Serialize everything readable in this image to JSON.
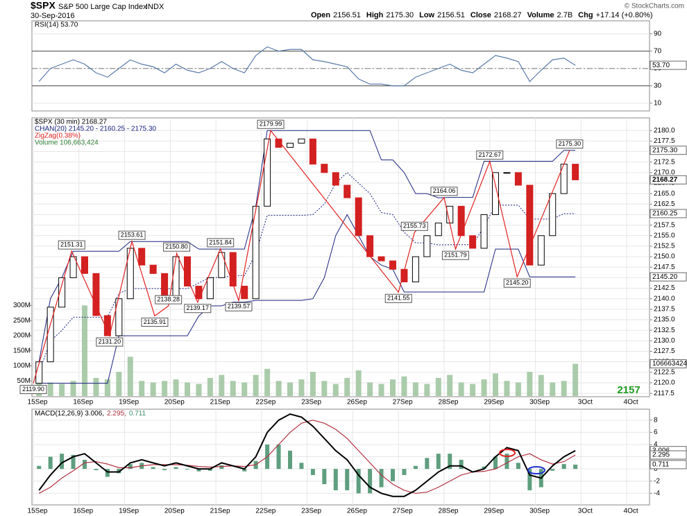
{
  "header": {
    "symbol": "$SPX",
    "name": "S&P 500 Large Cap Index",
    "exchange": "INDX",
    "date": "30-Sep-2016",
    "stats": [
      {
        "label": "Open",
        "value": "2156.51"
      },
      {
        "label": "High",
        "value": "2175.30"
      },
      {
        "label": "Low",
        "value": "2156.51"
      },
      {
        "label": "Close",
        "value": "2168.27"
      },
      {
        "label": "Volume",
        "value": "2.7B"
      },
      {
        "label": "Chg",
        "value": "+17.14 (+0.80%)"
      }
    ],
    "credit": "© StockCharts.com"
  },
  "chart_data": [
    {
      "type": "line",
      "legend": "RSI(14) 53.70",
      "color": "#5a7aa8",
      "x": [
        0.125,
        0.375,
        0.625,
        0.875,
        1.125,
        1.375,
        1.625,
        1.875,
        2.125,
        2.375,
        2.625,
        2.875,
        3.125,
        3.375,
        3.625,
        3.875,
        4.125,
        4.375,
        4.625,
        4.875,
        5.125,
        5.375,
        5.625,
        5.875,
        6.125,
        6.375,
        6.625,
        6.875,
        7.125,
        7.375,
        7.625,
        7.875,
        8.125,
        8.375,
        8.625,
        8.875,
        9.125,
        9.375,
        9.625,
        9.875,
        10.125,
        10.375,
        10.625,
        10.875,
        11.125,
        11.375,
        11.625,
        11.875
      ],
      "values": [
        35,
        50,
        55,
        60,
        55,
        45,
        40,
        50,
        60,
        55,
        52,
        45,
        55,
        48,
        45,
        50,
        58,
        50,
        45,
        65,
        75,
        70,
        72,
        72,
        60,
        58,
        55,
        52,
        38,
        32,
        32,
        30,
        30,
        40,
        45,
        50,
        55,
        48,
        45,
        55,
        65,
        62,
        58,
        35,
        48,
        60,
        62,
        53.7
      ],
      "xlim": [
        0,
        13.5
      ],
      "ylim": [
        1,
        105
      ],
      "yticks": [
        10,
        30,
        50,
        70,
        90
      ],
      "reference_lines": [
        30,
        50,
        70
      ],
      "last_label": {
        "value": 53.7,
        "label": "53.70"
      }
    },
    {
      "type": "candlestick",
      "legend": [
        {
          "text": "$SPX (30 min) 2168.27",
          "color": "#000000"
        },
        {
          "text": "CHAN(20) 2145.20 - 2160.25 - 2175.30",
          "color": "#1a237e"
        },
        {
          "text": "ZigZag(0.38%)",
          "color": "#e02020"
        },
        {
          "text": "Volume 106,663,424",
          "color": "#2e7d32"
        }
      ],
      "x": [
        0.125,
        0.375,
        0.625,
        0.875,
        1.125,
        1.375,
        1.625,
        1.875,
        2.125,
        2.375,
        2.625,
        2.875,
        3.125,
        3.375,
        3.625,
        3.875,
        4.125,
        4.375,
        4.625,
        4.875,
        5.125,
        5.375,
        5.625,
        5.875,
        6.125,
        6.375,
        6.625,
        6.875,
        7.125,
        7.375,
        7.625,
        7.875,
        8.125,
        8.375,
        8.625,
        8.875,
        9.125,
        9.375,
        9.625,
        9.875,
        10.125,
        10.375,
        10.625,
        10.875,
        11.125,
        11.375,
        11.625,
        11.875
      ],
      "open": [
        2119.9,
        2125,
        2138,
        2145,
        2150,
        2146,
        2136,
        2131.2,
        2140,
        2152,
        2148,
        2146,
        2140,
        2150,
        2143,
        2140,
        2145,
        2151,
        2143,
        2140,
        2162,
        2178,
        2176,
        2177,
        2178,
        2172,
        2170,
        2167,
        2164,
        2155,
        2150,
        2149,
        2147,
        2144,
        2150,
        2155,
        2158,
        2162,
        2155,
        2152,
        2160,
        2170,
        2170,
        2167,
        2148,
        2155,
        2165,
        2172
      ],
      "close": [
        2125,
        2138,
        2145,
        2150,
        2146,
        2136,
        2131.2,
        2140,
        2152,
        2148,
        2146,
        2140,
        2150,
        2143,
        2140,
        2145,
        2151,
        2143,
        2140,
        2162,
        2178,
        2176,
        2177,
        2178,
        2172,
        2170,
        2167,
        2164,
        2155,
        2150,
        2149,
        2147,
        2144,
        2150,
        2155,
        2158,
        2162,
        2155,
        2152,
        2160,
        2170,
        2170,
        2167,
        2148,
        2155,
        2165,
        2172,
        2168.27
      ],
      "up_color": "#000000",
      "down_color": "#d32020",
      "channel": {
        "color": "#1a237e",
        "upper": [
          2125,
          2140,
          2145,
          2151.3,
          2151.3,
          2151.3,
          2151.3,
          2151.3,
          2153.6,
          2153.6,
          2153.6,
          2153.6,
          2153.6,
          2153.6,
          2151.8,
          2151.8,
          2151.8,
          2151.8,
          2151.8,
          2162,
          2180,
          2180,
          2180,
          2180,
          2180,
          2180,
          2180,
          2180,
          2180,
          2180,
          2173,
          2173,
          2170,
          2165,
          2165,
          2164,
          2164.1,
          2164.1,
          2164.1,
          2172.7,
          2172.7,
          2172.7,
          2172.7,
          2172.7,
          2172.7,
          2172.7,
          2175.3,
          2175.3
        ],
        "middle": [
          2122.45,
          2129.95,
          2132.45,
          2135.6,
          2135.6,
          2135.6,
          2135.6,
          2141.25,
          2142.4,
          2142.4,
          2142.4,
          2142.4,
          2142.4,
          2142.4,
          2143.75,
          2145.05,
          2145.05,
          2145.5,
          2145.5,
          2150.8,
          2159.8,
          2159.8,
          2159.8,
          2159.8,
          2160,
          2162.5,
          2167.5,
          2170,
          2167.5,
          2165,
          2160.5,
          2160,
          2155.8,
          2153.3,
          2153.3,
          2152.8,
          2152.85,
          2152.85,
          2152.85,
          2157.15,
          2162.25,
          2162.25,
          2162.25,
          2158.95,
          2158.95,
          2158.95,
          2160.25,
          2160.25
        ],
        "lower": [
          2119.9,
          2119.9,
          2119.9,
          2119.9,
          2119.9,
          2119.9,
          2119.9,
          2131.2,
          2131.2,
          2131.2,
          2131.2,
          2131.2,
          2131.2,
          2131.2,
          2135.9,
          2138.3,
          2138.3,
          2139.2,
          2139.2,
          2139.6,
          2139.6,
          2139.6,
          2139.6,
          2139.6,
          2140,
          2145,
          2155,
          2160,
          2155,
          2150,
          2148,
          2147,
          2141.6,
          2141.6,
          2141.6,
          2141.6,
          2141.6,
          2141.6,
          2141.6,
          2141.6,
          2151.8,
          2151.8,
          2151.8,
          2145.2,
          2145.2,
          2145.2,
          2145.2,
          2145.2
        ]
      },
      "zigzag": {
        "color": "#e02020",
        "x": [
          0,
          0.84,
          1.67,
          2.16,
          2.66,
          2.96,
          3.14,
          3.6,
          4.1,
          4.5,
          5.2,
          8.0,
          8.35,
          9.0,
          9.25,
          10.0,
          10.6,
          11.75
        ],
        "values": [
          2119.9,
          2151.31,
          2131.2,
          2153.61,
          2135.91,
          2138.28,
          2150.8,
          2139.17,
          2151.84,
          2139.57,
          2179.99,
          2141.55,
          2155.73,
          2164.06,
          2151.79,
          2172.67,
          2145.2,
          2175.3
        ],
        "value_labels": [
          "2119.90",
          "2151.31",
          "2131.20",
          "2153.61",
          "2135.91",
          "2138.28",
          "2150.80",
          "2139.17",
          "2151.84",
          "2139.57",
          "2179.99",
          "2141.55",
          "2155.73",
          "2164.06",
          "2151.79",
          "2172.67",
          "2145.20",
          "2175.30"
        ]
      },
      "volume": {
        "color": "#9cc39c",
        "values": [
          60000000,
          45000000,
          40000000,
          50000000,
          300000000,
          60000000,
          55000000,
          80000000,
          130000000,
          50000000,
          45000000,
          50000000,
          55000000,
          45000000,
          40000000,
          60000000,
          70000000,
          50000000,
          45000000,
          70000000,
          90000000,
          50000000,
          45000000,
          55000000,
          80000000,
          50000000,
          40000000,
          60000000,
          85000000,
          45000000,
          40000000,
          55000000,
          65000000,
          45000000,
          40000000,
          60000000,
          70000000,
          45000000,
          40000000,
          55000000,
          75000000,
          50000000,
          45000000,
          80000000,
          70000000,
          45000000,
          50000000,
          106663424
        ],
        "ylim": [
          0,
          900000000
        ],
        "yticks": [
          {
            "value": 50000000,
            "label": "50M"
          },
          {
            "value": 100000000,
            "label": "100M"
          },
          {
            "value": 150000000,
            "label": "150M"
          },
          {
            "value": 200000000,
            "label": "200M"
          },
          {
            "value": 250000000,
            "label": "250M"
          },
          {
            "value": 300000000,
            "label": "300M"
          }
        ],
        "last_label": {
          "value": 106663424,
          "label": "106663424"
        }
      },
      "xlim": [
        0,
        13.5
      ],
      "ylim": [
        2116.7,
        2183
      ],
      "yticks": [
        2117.5,
        {
          "value": 2120,
          "label": "2120.0"
        },
        2122.5,
        {
          "value": 2125,
          "label": "2125.0"
        },
        2127.5,
        {
          "value": 2130,
          "label": "2130.0"
        },
        2132.5,
        {
          "value": 2135,
          "label": "2135.0"
        },
        2137.5,
        {
          "value": 2140,
          "label": "2140.0"
        },
        2142.5,
        {
          "value": 2145,
          "label": "2145.0"
        },
        2147.5,
        {
          "value": 2150,
          "label": "2150.0"
        },
        2152.5,
        {
          "value": 2155,
          "label": "2155.0"
        },
        2157.5,
        {
          "value": 2160,
          "label": "2160.0"
        },
        2162.5,
        {
          "value": 2165,
          "label": "2165.0"
        },
        2167.5,
        {
          "value": 2170,
          "label": "2170.0"
        },
        2172.5,
        {
          "value": 2175,
          "label": "2175.0"
        },
        2177.5,
        {
          "value": 2180,
          "label": "2180.0"
        }
      ],
      "xticks": [
        {
          "value": 0,
          "label": "15Sep"
        },
        {
          "value": 1,
          "label": "16Sep"
        },
        {
          "value": 2,
          "label": "19Sep"
        },
        {
          "value": 3,
          "label": "20Sep"
        },
        {
          "value": 4,
          "label": "21Sep"
        },
        {
          "value": 5,
          "label": "22Sep"
        },
        {
          "value": 6,
          "label": "23Sep"
        },
        {
          "value": 7,
          "label": "26Sep"
        },
        {
          "value": 8,
          "label": "27Sep"
        },
        {
          "value": 9,
          "label": "28Sep"
        },
        {
          "value": 10,
          "label": "29Sep"
        },
        {
          "value": 11,
          "label": "30Sep"
        },
        {
          "value": 12,
          "label": "3Oct"
        },
        {
          "value": 13,
          "label": "4Oct"
        }
      ],
      "last_labels": [
        {
          "value": 2175.3,
          "label": "2175.30"
        },
        {
          "value": 2168.27,
          "label": "2168.27",
          "bold": true
        },
        {
          "value": 2160.25,
          "label": "2160.25"
        },
        {
          "value": 2145.2,
          "label": "2145.20"
        }
      ],
      "watermark": "2157",
      "watermark_color": "#1f9a1f"
    },
    {
      "type": "macd",
      "legend": [
        {
          "text": "MACD(12,26,9) 3.006,",
          "color": "#000000"
        },
        {
          "text": "2.295,",
          "color": "#b03040"
        },
        {
          "text": "0.711",
          "color": "#3f8f6f"
        }
      ],
      "x": [
        0.125,
        0.375,
        0.625,
        0.875,
        1.125,
        1.375,
        1.625,
        1.875,
        2.125,
        2.375,
        2.625,
        2.875,
        3.125,
        3.375,
        3.625,
        3.875,
        4.125,
        4.375,
        4.625,
        4.875,
        5.125,
        5.375,
        5.625,
        5.875,
        6.125,
        6.375,
        6.625,
        6.875,
        7.125,
        7.375,
        7.625,
        7.875,
        8.125,
        8.375,
        8.625,
        8.875,
        9.125,
        9.375,
        9.625,
        9.875,
        10.125,
        10.375,
        10.625,
        10.875,
        11.125,
        11.375,
        11.625,
        11.875
      ],
      "macd": [
        -3.5,
        -1,
        1,
        2,
        2.5,
        1,
        -0.5,
        -0.5,
        1,
        1.5,
        1,
        0.5,
        1,
        0.5,
        0,
        0,
        1,
        0.5,
        0,
        2,
        6,
        8,
        9,
        8.5,
        7,
        5,
        3,
        1.5,
        -1,
        -3,
        -4,
        -4.5,
        -4.5,
        -3.5,
        -2,
        -0.5,
        0.5,
        0.5,
        -0.5,
        0,
        2,
        3.5,
        3,
        -1,
        -1.5,
        0.5,
        2,
        3.006
      ],
      "signal": [
        -4,
        -3,
        -1.5,
        -0.3,
        1,
        1.2,
        0.8,
        0.2,
        0.2,
        0.5,
        0.7,
        0.7,
        0.7,
        0.6,
        0.4,
        0.3,
        0.4,
        0.5,
        0.4,
        0.7,
        2,
        4,
        6,
        7.5,
        8,
        7.5,
        6.5,
        5,
        3,
        1,
        -1,
        -2.5,
        -3.5,
        -4,
        -3.8,
        -3,
        -2,
        -1,
        -0.5,
        -0.4,
        0,
        1,
        2,
        2.5,
        1.5,
        0.8,
        1.2,
        2.295
      ],
      "histogram": [
        0.5,
        2,
        2.5,
        2.3,
        1.5,
        -0.2,
        -1.3,
        -0.7,
        0.8,
        1,
        0.3,
        -0.2,
        0.3,
        -0.1,
        -0.4,
        -0.3,
        0.6,
        0,
        -0.4,
        1.3,
        4,
        4,
        3,
        1,
        -1,
        -2.5,
        -3.5,
        -3.5,
        -4,
        -4,
        -3,
        -2,
        -1,
        0.5,
        1.8,
        2.5,
        2.5,
        1.5,
        0,
        0.4,
        2,
        2.5,
        1,
        -3.5,
        -3,
        -0.3,
        0.8,
        0.711
      ],
      "macd_color": "#000000",
      "signal_color": "#b03040",
      "histogram_color": "#5f9e7f",
      "xlim": [
        0,
        13.5
      ],
      "ylim": [
        -5.9,
        9.8
      ],
      "yticks": [
        -4,
        -2,
        0,
        2,
        4,
        6,
        8
      ],
      "xticks": [
        {
          "value": 0,
          "label": "15Sep"
        },
        {
          "value": 1,
          "label": "16Sep"
        },
        {
          "value": 2,
          "label": "19Sep"
        },
        {
          "value": 3,
          "label": "20Sep"
        },
        {
          "value": 4,
          "label": "21Sep"
        },
        {
          "value": 5,
          "label": "22Sep"
        },
        {
          "value": 6,
          "label": "23Sep"
        },
        {
          "value": 7,
          "label": "26Sep"
        },
        {
          "value": 8,
          "label": "27Sep"
        },
        {
          "value": 9,
          "label": "28Sep"
        },
        {
          "value": 10,
          "label": "29Sep"
        },
        {
          "value": 11,
          "label": "30Sep"
        },
        {
          "value": 12,
          "label": "3Oct"
        },
        {
          "value": 13,
          "label": "4Oct"
        }
      ],
      "last_labels": [
        {
          "value": 3.006,
          "label": "3.006"
        },
        {
          "value": 2.295,
          "label": "2.295"
        },
        {
          "value": 0.711,
          "label": "0.711"
        }
      ]
    }
  ]
}
